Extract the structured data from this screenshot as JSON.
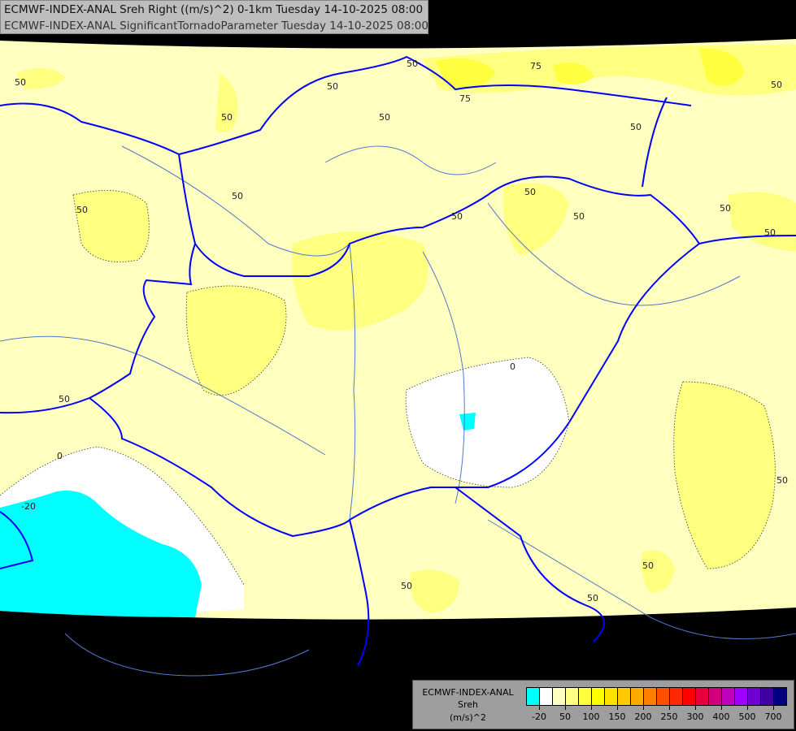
{
  "title": {
    "line1": "ECMWF-INDEX-ANAL Sreh Right ((m/s)^2) 0-1km Tuesday 14-10-2025 08:00",
    "line2": "ECMWF-INDEX-ANAL SignificantTornadoParameter Tuesday 14-10-2025 08:00"
  },
  "legend": {
    "model": "ECMWF-INDEX-ANAL",
    "parameter": "Sreh",
    "unit": "(m/s)^2",
    "colors": [
      "#00ffff",
      "#ffffff",
      "#ffffc0",
      "#ffff80",
      "#ffff40",
      "#ffff00",
      "#ffe000",
      "#ffc800",
      "#ffaa00",
      "#ff8000",
      "#ff5000",
      "#ff2800",
      "#ff0000",
      "#e8003c",
      "#d0007c",
      "#c000c0",
      "#a000ff",
      "#7000d0",
      "#4000a0",
      "#000080"
    ],
    "tick_labels": [
      "-20",
      "50",
      "100",
      "150",
      "200",
      "250",
      "300",
      "400",
      "500",
      "700"
    ]
  },
  "map": {
    "colors": {
      "background": "#000000",
      "field_low": "#ffffc0",
      "field_mid": "#ffff80",
      "field_high": "#ffff40",
      "negative": "#00ffff",
      "zero": "#ffffff",
      "borders": "#0000ff",
      "rivers": "#5577cc"
    },
    "contour_labels": [
      "50",
      "50",
      "50",
      "50",
      "50",
      "50",
      "50",
      "75",
      "75",
      "50",
      "50",
      "50",
      "50",
      "50",
      "50",
      "0",
      "50",
      "0",
      "-20",
      "50",
      "50",
      "50",
      "50",
      "50"
    ]
  }
}
